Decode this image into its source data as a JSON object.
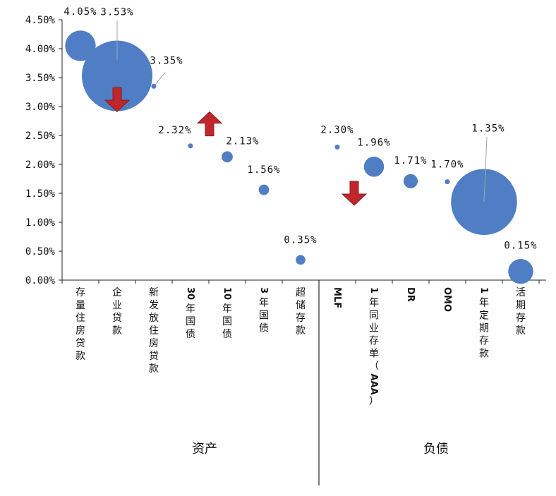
{
  "chart_data": {
    "type": "scatter",
    "variant": "bubble",
    "title": "",
    "xlabel": "",
    "ylabel": "",
    "ylim": [
      0,
      4.5
    ],
    "yticks": [
      "0.00%",
      "0.50%",
      "1.00%",
      "1.50%",
      "2.00%",
      "2.50%",
      "3.00%",
      "3.50%",
      "4.00%",
      "4.50%"
    ],
    "grid": false,
    "legend": "none",
    "bubble_color": "#4f7ec4",
    "arrow_color": "#c0272d",
    "categories": [
      "存量住房贷款",
      "企业贷款",
      "新发放住房贷款",
      "30年国债",
      "10年国债",
      "3年国债",
      "超储存款",
      "MLF",
      "1年同业存单（AAA）",
      "DR",
      "OMO",
      "1年定期存款",
      "活期存款"
    ],
    "points": [
      {
        "category": "存量住房贷款",
        "value": 4.05,
        "label": "4.05%",
        "size": 3
      },
      {
        "category": "企业贷款",
        "value": 3.53,
        "label": "3.53%",
        "size": 16
      },
      {
        "category": "新发放住房贷款",
        "value": 3.35,
        "label": "3.35%",
        "size": 0.08
      },
      {
        "category": "30年国债",
        "value": 2.32,
        "label": "2.32%",
        "size": 0.08
      },
      {
        "category": "10年国债",
        "value": 2.13,
        "label": "2.13%",
        "size": 0.4
      },
      {
        "category": "3年国债",
        "value": 1.56,
        "label": "1.56%",
        "size": 0.35
      },
      {
        "category": "超储存款",
        "value": 0.35,
        "label": "0.35%",
        "size": 0.3
      },
      {
        "category": "MLF",
        "value": 2.3,
        "label": "2.30%",
        "size": 0.08
      },
      {
        "category": "1年同业存单（AAA）",
        "value": 1.96,
        "label": "1.96%",
        "size": 1.3
      },
      {
        "category": "DR",
        "value": 1.71,
        "label": "1.71%",
        "size": 0.65
      },
      {
        "category": "OMO",
        "value": 1.7,
        "label": "1.70%",
        "size": 0.08
      },
      {
        "category": "1年定期存款",
        "value": 1.35,
        "label": "1.35%",
        "size": 14
      },
      {
        "category": "活期存款",
        "value": 0.15,
        "label": "0.15%",
        "size": 2
      }
    ],
    "groups": [
      {
        "label": "资产",
        "categories": [
          "存量住房贷款",
          "企业贷款",
          "新发放住房贷款",
          "30年国债",
          "10年国债",
          "3年国债",
          "超储存款"
        ]
      },
      {
        "label": "负债",
        "categories": [
          "MLF",
          "1年同业存单（AAA）",
          "DR",
          "OMO",
          "1年定期存款",
          "活期存款"
        ]
      }
    ],
    "arrows": [
      {
        "near": "企业贷款",
        "direction": "down"
      },
      {
        "near": "30年国债",
        "direction": "up"
      },
      {
        "near": "MLF",
        "direction": "down"
      }
    ]
  }
}
